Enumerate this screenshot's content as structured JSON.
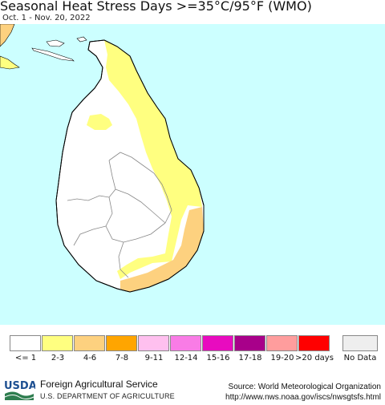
{
  "header": {
    "title": "Seasonal Heat Stress Days >=35°C/95°F (WMO)",
    "date_range": "Oct. 1 - Nov. 20, 2022"
  },
  "map": {
    "ocean_color": "#ccffff",
    "land_color": "#ffffff",
    "region": "Sri Lanka"
  },
  "legend": {
    "items": [
      {
        "label": "<= 1",
        "color": "#ffffff"
      },
      {
        "label": "2-3",
        "color": "#ffff80"
      },
      {
        "label": "4-6",
        "color": "#fdd17f"
      },
      {
        "label": "7-8",
        "color": "#ffa500"
      },
      {
        "label": "9-11",
        "color": "#ffc0ef"
      },
      {
        "label": "12-14",
        "color": "#f97ce6"
      },
      {
        "label": "15-16",
        "color": "#e80bbf"
      },
      {
        "label": "17-18",
        "color": "#a8008a"
      },
      {
        "label": "19-20",
        "color": "#ff9d9d"
      },
      {
        "label": ">20 days",
        "color": "#ff0000"
      }
    ],
    "no_data": {
      "label": "No Data",
      "color": "#eeeeee"
    }
  },
  "footer": {
    "logo_text": "USDA",
    "org_name": "Foreign Agricultural Service",
    "dept": "U.S. DEPARTMENT OF AGRICULTURE",
    "source": "Source: World Meteorological Organization",
    "url": "http://www.nws.noaa.gov/iscs/nwsgtsfs.html"
  }
}
